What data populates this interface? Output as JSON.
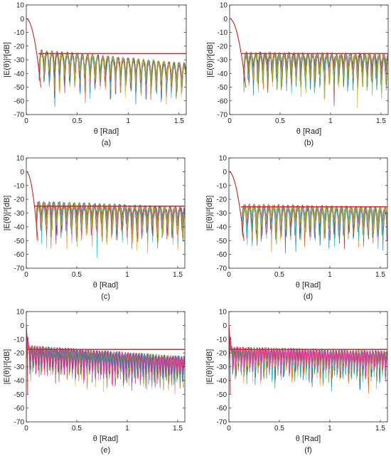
{
  "chart_data": [
    {
      "panel": "a",
      "type": "line",
      "caption": "(a)",
      "xlabel": "θ [Rad]",
      "ylabel": "|E(θ)|²[dB]",
      "xlim": [
        0,
        1.5708
      ],
      "ylim": [
        -70,
        10
      ],
      "xticks": [
        0,
        0.5,
        1,
        1.5
      ],
      "xtick_labels": [
        "0",
        "0.5",
        "1",
        "1.5"
      ],
      "yticks": [
        10,
        0,
        -10,
        -20,
        -30,
        -40,
        -50,
        -60,
        -70
      ],
      "ytick_labels": [
        "10",
        "0",
        "-10",
        "-20",
        "-30",
        "-40",
        "-50",
        "-60",
        "-70"
      ],
      "grid": false,
      "mask_level_db": -25.5,
      "mask_start": 0.12,
      "main_beam": {
        "null": 0.125
      },
      "sidelobes": {
        "spacing": 0.05,
        "peak_start": -24,
        "peak_end": -34,
        "null_depth": 36
      },
      "curve_count": 14
    },
    {
      "panel": "b",
      "type": "line",
      "caption": "(b)",
      "xlabel": "θ [Rad]",
      "ylabel": "|E(θ)|²[dB]",
      "xlim": [
        0,
        1.5708
      ],
      "ylim": [
        -70,
        10
      ],
      "xticks": [
        0,
        0.5,
        1,
        1.5
      ],
      "xtick_labels": [
        "0",
        "0.5",
        "1",
        "1.5"
      ],
      "yticks": [
        10,
        0,
        -10,
        -20,
        -30,
        -40,
        -50,
        -60,
        -70
      ],
      "ytick_labels": [
        "10",
        "0",
        "-10",
        "-20",
        "-30",
        "-40",
        "-50",
        "-60",
        "-70"
      ],
      "grid": false,
      "mask_level_db": -25.5,
      "mask_start": 0.12,
      "main_beam": {
        "null": 0.14
      },
      "sidelobes": {
        "spacing": 0.047,
        "peak_start": -26,
        "peak_end": -27,
        "null_depth": 36
      },
      "curve_count": 14
    },
    {
      "panel": "c",
      "type": "line",
      "caption": "(c)",
      "xlabel": "θ [Rad]",
      "ylabel": "|E(θ)|²[dB]",
      "xlim": [
        0,
        1.5708
      ],
      "ylim": [
        -70,
        10
      ],
      "xticks": [
        0,
        0.5,
        1,
        1.5
      ],
      "xtick_labels": [
        "0",
        "0.5",
        "1",
        "1.5"
      ],
      "yticks": [
        10,
        0,
        -10,
        -20,
        -30,
        -40,
        -50,
        -60,
        -70
      ],
      "ytick_labels": [
        "10",
        "0",
        "-10",
        "-20",
        "-30",
        "-40",
        "-50",
        "-60",
        "-70"
      ],
      "grid": false,
      "mask_level_db": -25,
      "mask_start": 0.08,
      "main_beam": {
        "null": 0.1
      },
      "sidelobes": {
        "spacing": 0.05,
        "peak_start": -23,
        "peak_end": -27,
        "null_depth": 34
      },
      "curve_count": 14
    },
    {
      "panel": "d",
      "type": "line",
      "caption": "(d)",
      "xlabel": "θ [Rad]",
      "ylabel": "|E(θ)|²[dB]",
      "xlim": [
        0,
        1.5708
      ],
      "ylim": [
        -70,
        10
      ],
      "xticks": [
        0,
        0.5,
        1,
        1.5
      ],
      "xtick_labels": [
        "0",
        "0.5",
        "1",
        "1.5"
      ],
      "yticks": [
        10,
        0,
        -10,
        -20,
        -30,
        -40,
        -50,
        -60,
        -70
      ],
      "ytick_labels": [
        "10",
        "0",
        "-10",
        "-20",
        "-30",
        "-40",
        "-50",
        "-60",
        "-70"
      ],
      "grid": false,
      "mask_level_db": -25.5,
      "mask_start": 0.12,
      "main_beam": {
        "null": 0.13
      },
      "sidelobes": {
        "spacing": 0.048,
        "peak_start": -25,
        "peak_end": -27,
        "null_depth": 36
      },
      "curve_count": 14
    },
    {
      "panel": "e",
      "type": "line",
      "caption": "(e)",
      "xlabel": "θ [Rad]",
      "ylabel": "|E(θ)|²[dB]",
      "xlim": [
        0,
        1.5708
      ],
      "ylim": [
        -70,
        10
      ],
      "xticks": [
        0,
        0.5,
        1,
        1.5
      ],
      "xtick_labels": [
        "0",
        "0.5",
        "1",
        "1.5"
      ],
      "yticks": [
        10,
        0,
        -10,
        -20,
        -30,
        -40,
        -50,
        -60,
        -70
      ],
      "ytick_labels": [
        "10",
        "0",
        "-10",
        "-20",
        "-30",
        "-40",
        "-50",
        "-60",
        "-70"
      ],
      "grid": false,
      "mask_level_db": -17.5,
      "mask_start": 0.0,
      "main_beam": {
        "null": 0.012
      },
      "sidelobes": {
        "spacing": 0.028,
        "peak_start": -16,
        "peak_end": -24,
        "null_depth": 30
      },
      "curve_count": 16
    },
    {
      "panel": "f",
      "type": "line",
      "caption": "(f)",
      "xlabel": "θ [Rad]",
      "ylabel": "|E(θ)|²[dB]",
      "xlim": [
        0,
        1.5708
      ],
      "ylim": [
        -70,
        10
      ],
      "xticks": [
        0,
        0.5,
        1,
        1.5
      ],
      "xtick_labels": [
        "0",
        "0.5",
        "1",
        "1.5"
      ],
      "yticks": [
        10,
        0,
        -10,
        -20,
        -30,
        -40,
        -50,
        -60,
        -70
      ],
      "ytick_labels": [
        "10",
        "0",
        "-10",
        "-20",
        "-30",
        "-40",
        "-50",
        "-60",
        "-70"
      ],
      "grid": false,
      "mask_level_db": -17.5,
      "mask_start": 0.0,
      "main_beam": {
        "null": 0.012
      },
      "sidelobes": {
        "spacing": 0.028,
        "peak_start": -17,
        "peak_end": -20,
        "null_depth": 30
      },
      "curve_count": 16
    }
  ],
  "colors": {
    "mask": "#d62728",
    "main_beam": "#d62728",
    "axes": "#262626",
    "palette": [
      "#0072bd",
      "#d95319",
      "#edb120",
      "#7e2f8e",
      "#77ac30",
      "#4dbeee",
      "#a2142f",
      "#2ca02c",
      "#1f77b4",
      "#ff7f0e",
      "#17becf",
      "#e377c2",
      "#8c564b",
      "#bcbd22",
      "#9467bd",
      "#ff1493"
    ]
  }
}
